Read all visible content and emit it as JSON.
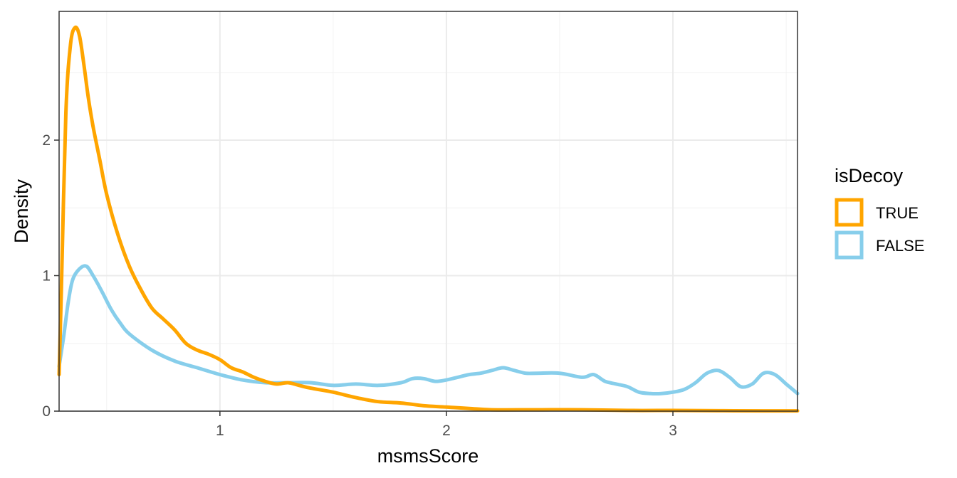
{
  "chart_data": {
    "type": "line",
    "title": "",
    "xlabel": "msmsScore",
    "ylabel": "Density",
    "xlim": [
      0.29,
      3.55
    ],
    "ylim": [
      0,
      2.95
    ],
    "x_ticks": [
      1,
      2,
      3
    ],
    "y_ticks": [
      0,
      1,
      2
    ],
    "x_tick_labels": [
      "1",
      "2",
      "3"
    ],
    "y_tick_labels": [
      "0",
      "1",
      "2"
    ],
    "grid": true,
    "legend": {
      "title": "isDecoy",
      "position": "right"
    },
    "series": [
      {
        "name": "TRUE",
        "color": "#FFA500",
        "x": [
          0.29,
          0.3,
          0.32,
          0.34,
          0.36,
          0.38,
          0.4,
          0.42,
          0.44,
          0.47,
          0.5,
          0.55,
          0.6,
          0.65,
          0.7,
          0.75,
          0.8,
          0.85,
          0.9,
          0.95,
          1.0,
          1.05,
          1.1,
          1.15,
          1.2,
          1.25,
          1.3,
          1.35,
          1.4,
          1.5,
          1.6,
          1.7,
          1.8,
          1.9,
          2.0,
          2.1,
          2.2,
          2.4,
          2.6,
          2.8,
          3.0,
          3.2,
          3.4,
          3.55
        ],
        "y": [
          0.27,
          0.9,
          2.2,
          2.7,
          2.83,
          2.77,
          2.55,
          2.3,
          2.1,
          1.85,
          1.6,
          1.3,
          1.07,
          0.9,
          0.76,
          0.68,
          0.6,
          0.5,
          0.45,
          0.42,
          0.38,
          0.32,
          0.29,
          0.25,
          0.22,
          0.2,
          0.21,
          0.19,
          0.17,
          0.14,
          0.1,
          0.07,
          0.06,
          0.04,
          0.03,
          0.02,
          0.01,
          0.01,
          0.01,
          0.005,
          0.005,
          0.003,
          0.002,
          0.002
        ]
      },
      {
        "name": "FALSE",
        "color": "#87CEEB",
        "x": [
          0.29,
          0.31,
          0.33,
          0.35,
          0.38,
          0.41,
          0.44,
          0.48,
          0.52,
          0.56,
          0.6,
          0.7,
          0.8,
          0.9,
          1.0,
          1.1,
          1.2,
          1.3,
          1.4,
          1.5,
          1.6,
          1.7,
          1.8,
          1.85,
          1.9,
          1.95,
          2.0,
          2.05,
          2.1,
          2.15,
          2.2,
          2.25,
          2.3,
          2.35,
          2.4,
          2.5,
          2.6,
          2.65,
          2.7,
          2.75,
          2.8,
          2.85,
          2.9,
          2.95,
          3.0,
          3.05,
          3.1,
          3.15,
          3.2,
          3.25,
          3.3,
          3.35,
          3.4,
          3.45,
          3.5,
          3.55
        ],
        "y": [
          0.33,
          0.55,
          0.8,
          0.97,
          1.05,
          1.07,
          1.0,
          0.88,
          0.75,
          0.65,
          0.57,
          0.45,
          0.37,
          0.32,
          0.27,
          0.23,
          0.21,
          0.21,
          0.21,
          0.19,
          0.2,
          0.19,
          0.21,
          0.24,
          0.24,
          0.22,
          0.23,
          0.25,
          0.27,
          0.28,
          0.3,
          0.32,
          0.3,
          0.28,
          0.28,
          0.28,
          0.25,
          0.27,
          0.22,
          0.2,
          0.18,
          0.14,
          0.13,
          0.13,
          0.14,
          0.16,
          0.21,
          0.28,
          0.3,
          0.25,
          0.18,
          0.2,
          0.28,
          0.27,
          0.2,
          0.13
        ]
      }
    ]
  }
}
